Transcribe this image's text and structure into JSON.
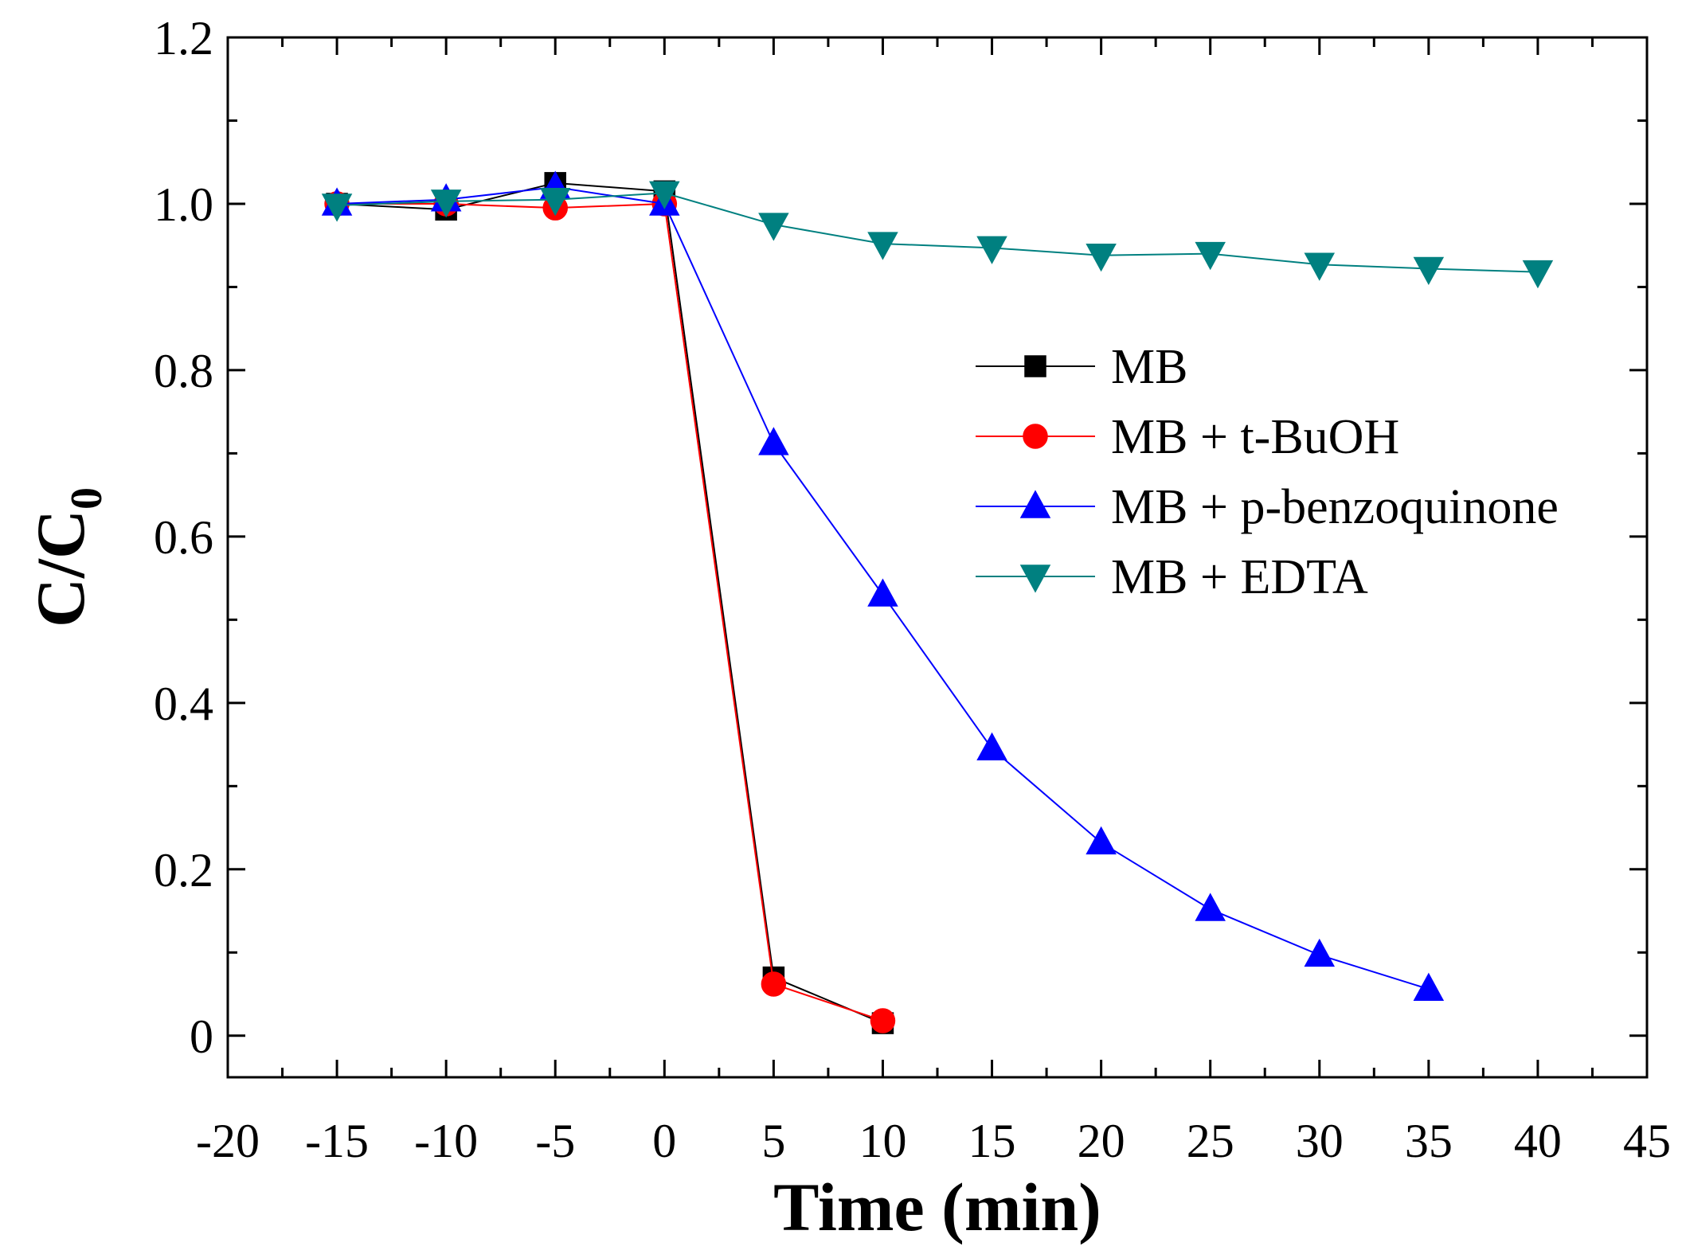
{
  "chart_data": {
    "type": "line",
    "title": "",
    "xlabel": "Time (min)",
    "ylabel_main": "C/C",
    "ylabel_sub": "0",
    "xlim": [
      -20,
      45
    ],
    "ylim": [
      -0.05,
      1.2
    ],
    "xticks": [
      -20,
      -15,
      -10,
      -5,
      0,
      5,
      10,
      15,
      20,
      25,
      30,
      35,
      40,
      45
    ],
    "xtick_labels": [
      "-20",
      "-15",
      "-10",
      "-5",
      "0",
      "5",
      "10",
      "15",
      "20",
      "25",
      "30",
      "35",
      "40",
      "45"
    ],
    "yticks": [
      0,
      0.2,
      0.4,
      0.6,
      0.8,
      1.0,
      1.2
    ],
    "ytick_labels": [
      "0",
      "0.2",
      "0.4",
      "0.6",
      "0.8",
      "1.0",
      "1.2"
    ],
    "grid": false,
    "legend_position": "center-right",
    "series": [
      {
        "name": "MB",
        "color": "#000000",
        "marker": "square",
        "x": [
          -15,
          -10,
          -5,
          0,
          5,
          10
        ],
        "values": [
          1.0,
          0.993,
          1.025,
          1.015,
          0.07,
          0.015
        ]
      },
      {
        "name": "MB + t-BuOH",
        "color": "#ff0000",
        "marker": "circle",
        "x": [
          -15,
          -10,
          -5,
          0,
          5,
          10
        ],
        "values": [
          1.0,
          1.0,
          0.995,
          1.0,
          0.062,
          0.018
        ]
      },
      {
        "name": "MB + p-benzoquinone",
        "color": "#0000ff",
        "marker": "triangle-up",
        "x": [
          -15,
          -10,
          -5,
          0,
          5,
          10,
          15,
          20,
          25,
          30,
          35
        ],
        "values": [
          1.0,
          1.005,
          1.02,
          1.0,
          0.712,
          0.53,
          0.345,
          0.232,
          0.152,
          0.097,
          0.056
        ]
      },
      {
        "name": "MB + EDTA",
        "color": "#008080",
        "marker": "triangle-down",
        "x": [
          -15,
          -10,
          -5,
          0,
          5,
          10,
          15,
          20,
          25,
          30,
          35,
          40
        ],
        "values": [
          0.998,
          1.003,
          1.005,
          1.013,
          0.975,
          0.952,
          0.947,
          0.938,
          0.94,
          0.927,
          0.922,
          0.918
        ]
      }
    ]
  }
}
